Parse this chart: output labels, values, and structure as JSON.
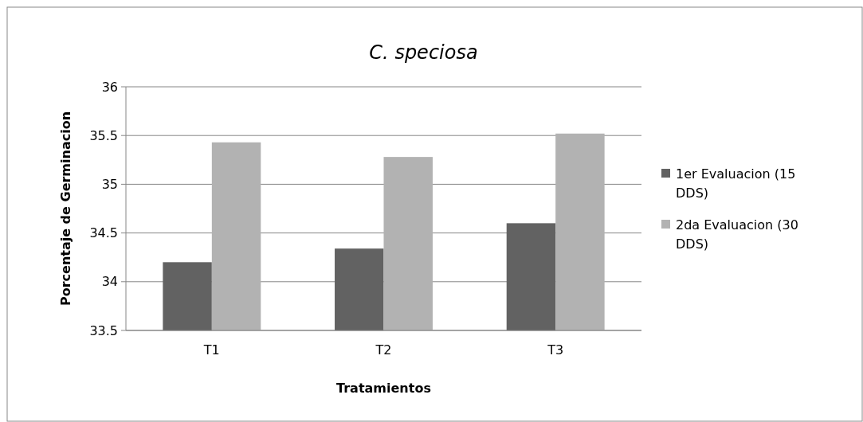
{
  "chart_data": {
    "type": "bar",
    "title": "C. speciosa",
    "xlabel": "Tratamientos",
    "ylabel": "Porcentaje de Germinacion",
    "categories": [
      "T1",
      "T2",
      "T3"
    ],
    "series": [
      {
        "name": "1er Evaluacion (15 DDS)",
        "color": "#626262",
        "values": [
          34.2,
          34.34,
          34.6
        ]
      },
      {
        "name": "2da Evaluacion (30 DDS)",
        "color": "#b2b2b2",
        "values": [
          35.43,
          35.28,
          35.52
        ]
      }
    ],
    "ylim": [
      33.5,
      36
    ],
    "yticks": [
      33.5,
      34,
      34.5,
      35,
      35.5,
      36
    ],
    "grid": "y",
    "legend": "right"
  }
}
